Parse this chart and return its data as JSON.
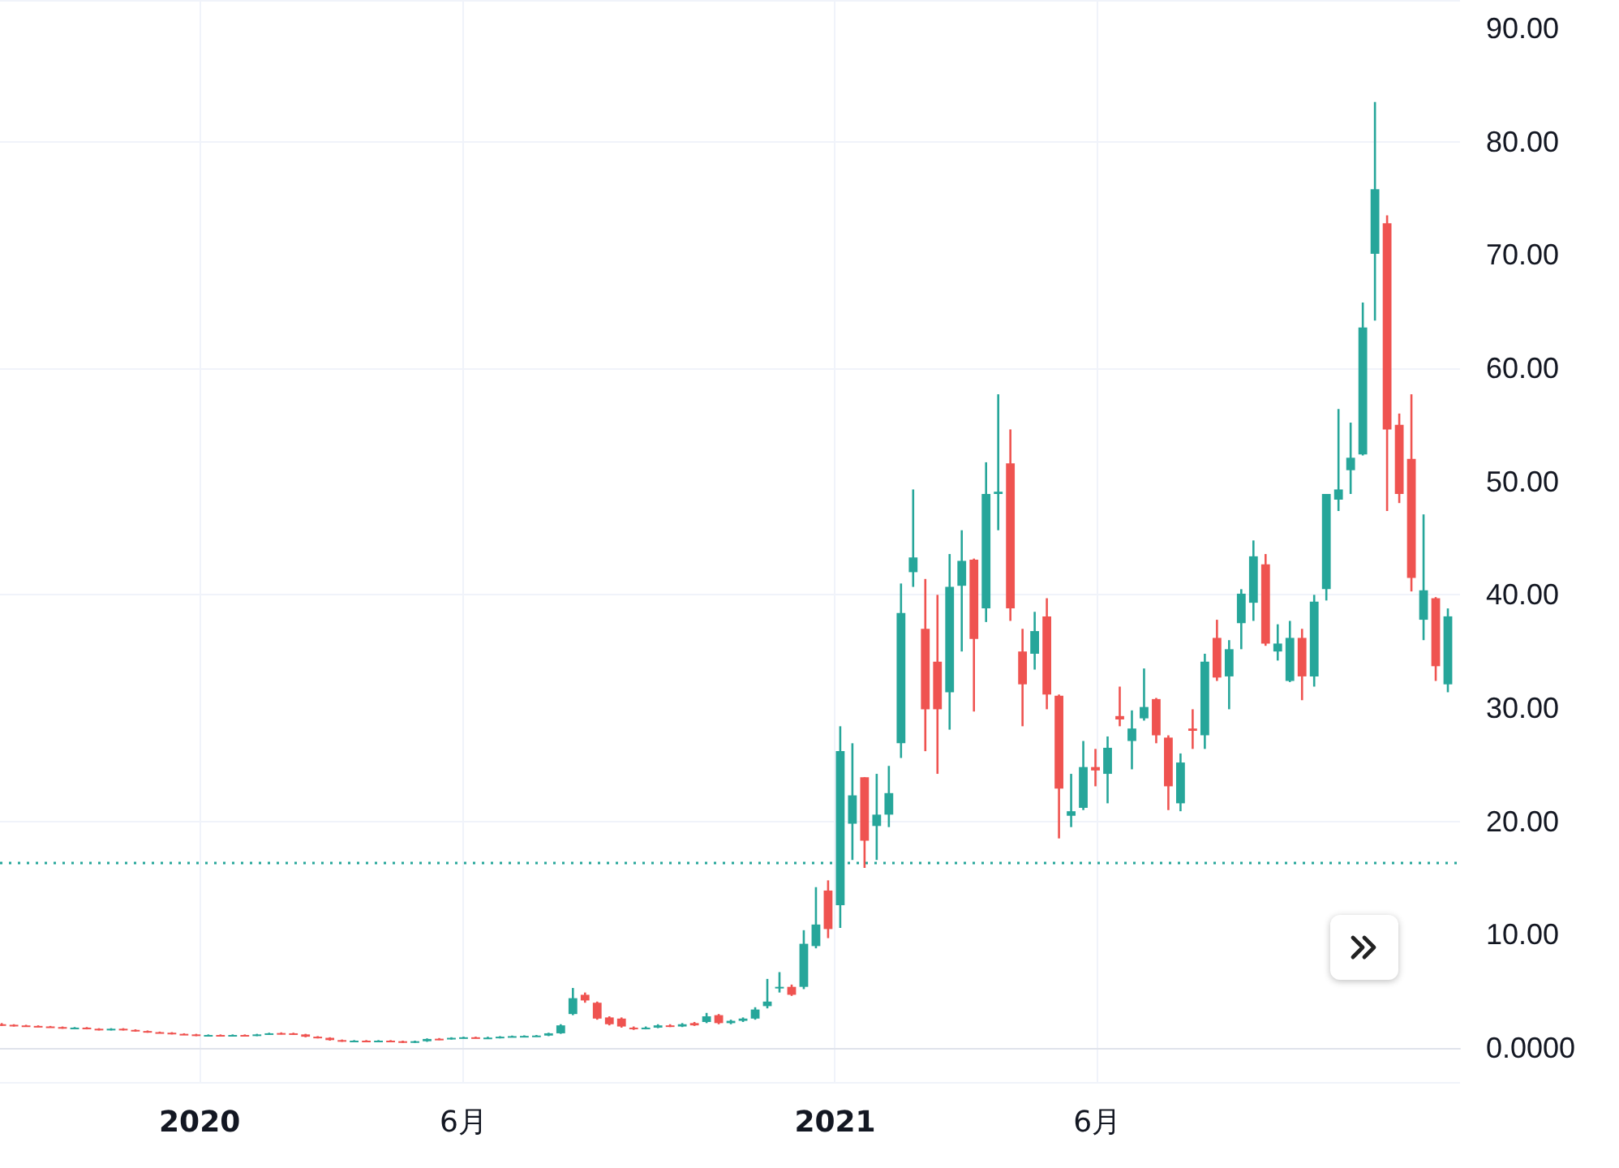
{
  "chart_data": {
    "type": "candlestick",
    "x": [
      "2019-09-09",
      "2019-09-16",
      "2019-09-23",
      "2019-09-30",
      "2019-10-07",
      "2019-10-14",
      "2019-10-21",
      "2019-10-28",
      "2019-11-04",
      "2019-11-11",
      "2019-11-18",
      "2019-11-25",
      "2019-12-02",
      "2019-12-09",
      "2019-12-16",
      "2019-12-23",
      "2019-12-30",
      "2020-01-06",
      "2020-01-13",
      "2020-01-20",
      "2020-01-27",
      "2020-02-03",
      "2020-02-10",
      "2020-02-17",
      "2020-02-24",
      "2020-03-02",
      "2020-03-09",
      "2020-03-16",
      "2020-03-23",
      "2020-03-30",
      "2020-04-06",
      "2020-04-13",
      "2020-04-20",
      "2020-04-27",
      "2020-05-04",
      "2020-05-11",
      "2020-05-18",
      "2020-05-25",
      "2020-06-01",
      "2020-06-08",
      "2020-06-15",
      "2020-06-22",
      "2020-06-29",
      "2020-07-06",
      "2020-07-13",
      "2020-07-20",
      "2020-07-27",
      "2020-08-03",
      "2020-08-10",
      "2020-08-17",
      "2020-08-24",
      "2020-08-31",
      "2020-09-07",
      "2020-09-14",
      "2020-09-21",
      "2020-09-28",
      "2020-10-05",
      "2020-10-12",
      "2020-10-19",
      "2020-10-26",
      "2020-11-02",
      "2020-11-09",
      "2020-11-16",
      "2020-11-23",
      "2020-11-30",
      "2020-12-07",
      "2020-12-14",
      "2020-12-21",
      "2020-12-28",
      "2021-01-04",
      "2021-01-11",
      "2021-01-18",
      "2021-01-25",
      "2021-02-01",
      "2021-02-08",
      "2021-02-15",
      "2021-02-22",
      "2021-03-01",
      "2021-03-08",
      "2021-03-15",
      "2021-03-22",
      "2021-03-29",
      "2021-04-05",
      "2021-04-12",
      "2021-04-19",
      "2021-04-26",
      "2021-05-03",
      "2021-05-10",
      "2021-05-17",
      "2021-05-24",
      "2021-05-31",
      "2021-06-07",
      "2021-06-14",
      "2021-06-21",
      "2021-06-28",
      "2021-07-05",
      "2021-07-12",
      "2021-07-19",
      "2021-07-26",
      "2021-08-02",
      "2021-08-09",
      "2021-08-16",
      "2021-08-23",
      "2021-08-30",
      "2021-09-06",
      "2021-09-13",
      "2021-09-20",
      "2021-09-27",
      "2021-10-04",
      "2021-10-11",
      "2021-10-18",
      "2021-10-25",
      "2021-11-01",
      "2021-11-08",
      "2021-11-15",
      "2021-11-22",
      "2021-11-29",
      "2021-12-06",
      "2021-12-13",
      "2021-12-20"
    ],
    "ohlc": [
      [
        2.1,
        2.2,
        1.95,
        2.05
      ],
      [
        2.05,
        2.1,
        1.9,
        2.0
      ],
      [
        2.0,
        2.05,
        1.9,
        1.95
      ],
      [
        1.95,
        2.0,
        1.85,
        1.9
      ],
      [
        1.9,
        1.95,
        1.8,
        1.85
      ],
      [
        1.85,
        1.9,
        1.7,
        1.75
      ],
      [
        1.75,
        1.85,
        1.7,
        1.8
      ],
      [
        1.8,
        1.85,
        1.65,
        1.7
      ],
      [
        1.7,
        1.75,
        1.55,
        1.6
      ],
      [
        1.6,
        1.75,
        1.55,
        1.7
      ],
      [
        1.7,
        1.75,
        1.55,
        1.6
      ],
      [
        1.6,
        1.65,
        1.45,
        1.5
      ],
      [
        1.5,
        1.55,
        1.35,
        1.4
      ],
      [
        1.4,
        1.45,
        1.3,
        1.35
      ],
      [
        1.35,
        1.4,
        1.2,
        1.25
      ],
      [
        1.25,
        1.3,
        1.15,
        1.2
      ],
      [
        1.2,
        1.25,
        1.05,
        1.1
      ],
      [
        1.1,
        1.2,
        1.05,
        1.15
      ],
      [
        1.15,
        1.2,
        1.05,
        1.1
      ],
      [
        1.1,
        1.2,
        1.05,
        1.15
      ],
      [
        1.15,
        1.2,
        1.05,
        1.1
      ],
      [
        1.1,
        1.25,
        1.05,
        1.2
      ],
      [
        1.2,
        1.35,
        1.15,
        1.3
      ],
      [
        1.32,
        1.38,
        1.2,
        1.28
      ],
      [
        1.3,
        1.35,
        1.15,
        1.2
      ],
      [
        1.2,
        1.25,
        0.95,
        1.0
      ],
      [
        1.0,
        1.05,
        0.85,
        0.9
      ],
      [
        0.9,
        0.95,
        0.65,
        0.7
      ],
      [
        0.7,
        0.75,
        0.55,
        0.6
      ],
      [
        0.6,
        0.7,
        0.55,
        0.65
      ],
      [
        0.65,
        0.7,
        0.55,
        0.6
      ],
      [
        0.6,
        0.7,
        0.55,
        0.65
      ],
      [
        0.65,
        0.7,
        0.55,
        0.6
      ],
      [
        0.6,
        0.65,
        0.45,
        0.5
      ],
      [
        0.5,
        0.65,
        0.45,
        0.6
      ],
      [
        0.6,
        0.85,
        0.55,
        0.8
      ],
      [
        0.82,
        0.88,
        0.7,
        0.78
      ],
      [
        0.8,
        0.95,
        0.75,
        0.9
      ],
      [
        0.9,
        1.0,
        0.85,
        0.95
      ],
      [
        0.95,
        1.0,
        0.85,
        0.9
      ],
      [
        0.88,
        1.0,
        0.8,
        0.92
      ],
      [
        0.9,
        1.05,
        0.85,
        1.0
      ],
      [
        1.0,
        1.1,
        0.95,
        1.05
      ],
      [
        1.03,
        1.12,
        0.98,
        1.07
      ],
      [
        1.05,
        1.15,
        1.0,
        1.1
      ],
      [
        1.1,
        1.35,
        1.05,
        1.3
      ],
      [
        1.3,
        2.1,
        1.25,
        2.0
      ],
      [
        3.0,
        5.3,
        2.9,
        4.4
      ],
      [
        4.7,
        4.9,
        4.0,
        4.2
      ],
      [
        4.0,
        4.1,
        2.5,
        2.6
      ],
      [
        2.7,
        2.8,
        2.0,
        2.1
      ],
      [
        2.6,
        2.7,
        1.8,
        1.9
      ],
      [
        1.8,
        1.9,
        1.6,
        1.7
      ],
      [
        1.7,
        1.9,
        1.65,
        1.8
      ],
      [
        1.8,
        2.1,
        1.75,
        2.0
      ],
      [
        2.0,
        2.1,
        1.85,
        1.9
      ],
      [
        1.9,
        2.2,
        1.85,
        2.1
      ],
      [
        2.2,
        2.3,
        1.95,
        2.0
      ],
      [
        2.3,
        3.1,
        2.2,
        2.8
      ],
      [
        2.9,
        3.0,
        2.1,
        2.2
      ],
      [
        2.2,
        2.5,
        2.1,
        2.4
      ],
      [
        2.4,
        2.7,
        2.3,
        2.6
      ],
      [
        2.6,
        3.6,
        2.5,
        3.4
      ],
      [
        3.7,
        6.1,
        3.5,
        4.1
      ],
      [
        5.3,
        6.7,
        4.9,
        5.4
      ],
      [
        5.4,
        5.6,
        4.6,
        4.7
      ],
      [
        5.4,
        10.4,
        5.2,
        9.2
      ],
      [
        9.0,
        14.2,
        8.8,
        10.9
      ],
      [
        13.9,
        14.8,
        9.7,
        10.5
      ],
      [
        12.6,
        28.4,
        10.6,
        26.2
      ],
      [
        19.8,
        26.9,
        16.6,
        22.3
      ],
      [
        23.9,
        23.9,
        15.9,
        18.3
      ],
      [
        19.6,
        24.2,
        16.6,
        20.6
      ],
      [
        20.6,
        24.9,
        19.5,
        22.5
      ],
      [
        26.9,
        41.0,
        25.6,
        38.4
      ],
      [
        42.0,
        49.3,
        40.7,
        43.3
      ],
      [
        37.0,
        41.4,
        26.2,
        29.9
      ],
      [
        34.1,
        40.0,
        24.2,
        29.9
      ],
      [
        31.4,
        43.6,
        28.1,
        40.7
      ],
      [
        40.8,
        45.7,
        35.0,
        43.0
      ],
      [
        43.1,
        43.2,
        29.7,
        36.1
      ],
      [
        38.8,
        51.7,
        37.6,
        48.9
      ],
      [
        48.9,
        57.7,
        45.7,
        49.1
      ],
      [
        51.6,
        54.6,
        37.7,
        38.8
      ],
      [
        35.0,
        37.0,
        28.4,
        32.1
      ],
      [
        34.8,
        38.5,
        33.4,
        36.8
      ],
      [
        38.1,
        39.7,
        29.9,
        31.2
      ],
      [
        31.1,
        31.2,
        18.5,
        22.9
      ],
      [
        20.5,
        24.2,
        19.5,
        20.9
      ],
      [
        21.2,
        27.1,
        21.0,
        24.8
      ],
      [
        24.8,
        26.4,
        23.1,
        24.5
      ],
      [
        24.2,
        27.5,
        21.6,
        26.5
      ],
      [
        29.3,
        31.9,
        28.4,
        29.0
      ],
      [
        27.1,
        29.8,
        24.6,
        28.2
      ],
      [
        29.1,
        33.5,
        28.9,
        30.1
      ],
      [
        30.8,
        30.9,
        26.9,
        27.6
      ],
      [
        27.4,
        27.6,
        21.0,
        23.1
      ],
      [
        21.6,
        26.0,
        20.9,
        25.2
      ],
      [
        28.2,
        29.9,
        26.4,
        28.0
      ],
      [
        27.6,
        34.8,
        26.4,
        34.1
      ],
      [
        36.2,
        37.8,
        32.4,
        32.7
      ],
      [
        32.8,
        36.0,
        29.9,
        35.2
      ],
      [
        37.5,
        40.5,
        35.2,
        40.1
      ],
      [
        39.3,
        44.8,
        37.7,
        43.4
      ],
      [
        42.7,
        43.6,
        35.5,
        35.7
      ],
      [
        35.0,
        37.4,
        34.2,
        35.7
      ],
      [
        32.4,
        37.7,
        32.3,
        36.2
      ],
      [
        36.2,
        37.0,
        30.7,
        32.8
      ],
      [
        32.8,
        40.0,
        31.9,
        39.4
      ],
      [
        40.5,
        48.9,
        39.5,
        48.9
      ],
      [
        48.4,
        56.4,
        47.4,
        49.3
      ],
      [
        51.0,
        55.2,
        48.9,
        52.1
      ],
      [
        52.4,
        65.8,
        52.3,
        63.6
      ],
      [
        70.1,
        83.5,
        64.2,
        75.8
      ],
      [
        72.8,
        73.5,
        47.4,
        54.6
      ],
      [
        55.0,
        56.0,
        48.1,
        48.9
      ],
      [
        52.0,
        57.7,
        40.3,
        41.5
      ],
      [
        37.8,
        47.1,
        36.0,
        40.4
      ],
      [
        39.7,
        39.8,
        32.4,
        33.7
      ],
      [
        32.1,
        38.8,
        31.4,
        38.1
      ]
    ],
    "xlim": [
      "2019-09-08",
      "2021-12-27"
    ],
    "xticks": [
      {
        "value": "2020-01-01",
        "label": "2020"
      },
      {
        "value": "2020-06-01",
        "label": "6月"
      },
      {
        "value": "2021-01-01",
        "label": "2021"
      },
      {
        "value": "2021-06-01",
        "label": "6月"
      }
    ],
    "ylim": [
      -3,
      92.5
    ],
    "yticks": [
      {
        "value": 0,
        "label": "0.0000"
      },
      {
        "value": 10,
        "label": "10.00"
      },
      {
        "value": 20,
        "label": "20.00"
      },
      {
        "value": 30,
        "label": "30.00"
      },
      {
        "value": 40,
        "label": "40.00"
      },
      {
        "value": 50,
        "label": "50.00"
      },
      {
        "value": 60,
        "label": "60.00"
      },
      {
        "value": 70,
        "label": "70.00"
      },
      {
        "value": 80,
        "label": "80.00"
      },
      {
        "value": 90,
        "label": "90.00"
      }
    ],
    "ref_lines": [
      {
        "axis": "y",
        "value": 16.3,
        "color": "#26a69a",
        "line_style": "dotted"
      }
    ],
    "grid": true
  }
}
